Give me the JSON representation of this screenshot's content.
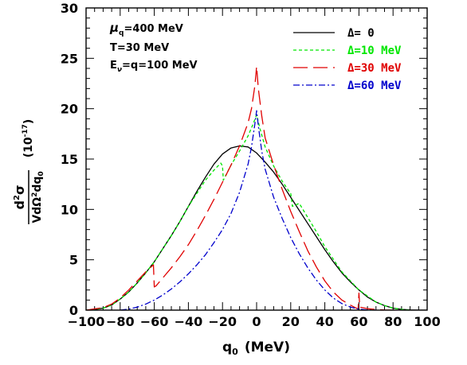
{
  "chart_data": {
    "type": "line",
    "xlabel": {
      "main": "q",
      "sub": "0",
      "unit": "(MeV)"
    },
    "ylabel": {
      "num_d": "d",
      "num_sup": "2",
      "num_sigma": "σ",
      "den": "VdΩ",
      "den_sup": "2",
      "den_dq": "dq",
      "den_sub": "0",
      "scale": "(10",
      "scale_exp": "-17",
      "scale_close": ")"
    },
    "xlim": [
      -100,
      100
    ],
    "ylim": [
      0,
      30
    ],
    "xticks": [
      -100,
      -80,
      -60,
      -40,
      -20,
      0,
      20,
      40,
      60,
      80,
      100
    ],
    "xtick_labels": [
      "−100",
      "−80",
      "−60",
      "−40",
      "−20",
      "0",
      "20",
      "40",
      "60",
      "80",
      "100"
    ],
    "yticks": [
      0,
      5,
      10,
      15,
      20,
      25,
      30
    ],
    "ytick_labels": [
      "0",
      "5",
      "10",
      "15",
      "20",
      "25",
      "30"
    ],
    "params": {
      "mu_sym": "μ",
      "mu_sub": "q",
      "mu_val": "=400 MeV",
      "temp": "T=30 MeV",
      "enu_sym": "E",
      "enu_sub": "ν",
      "enu_val": "=q=100 MeV"
    },
    "series": [
      {
        "name": "Δ= 0",
        "color": "#000000",
        "dash": "",
        "x": [
          -100,
          -95,
          -90,
          -85,
          -80,
          -75,
          -70,
          -65,
          -60,
          -55,
          -50,
          -45,
          -40,
          -35,
          -30,
          -25,
          -20,
          -15,
          -10,
          -5,
          0,
          5,
          10,
          15,
          20,
          25,
          30,
          35,
          40,
          45,
          50,
          55,
          60,
          65,
          70,
          75,
          80,
          85,
          90,
          95,
          100
        ],
        "y": [
          0,
          0.05,
          0.2,
          0.5,
          1.1,
          1.8,
          2.7,
          3.7,
          4.8,
          6.1,
          7.4,
          8.8,
          10.3,
          11.8,
          13.2,
          14.5,
          15.5,
          16.1,
          16.3,
          16.2,
          15.6,
          14.7,
          13.7,
          12.5,
          11.2,
          9.9,
          8.6,
          7.3,
          6.0,
          4.8,
          3.7,
          2.8,
          2.0,
          1.3,
          0.8,
          0.45,
          0.2,
          0.08,
          0.02,
          0,
          0
        ]
      },
      {
        "name": "Δ=10 MeV",
        "color": "#00e600",
        "dash": "4 3",
        "x": [
          -100,
          -90,
          -85,
          -80,
          -75,
          -70,
          -65,
          -60,
          -55,
          -50,
          -45,
          -40,
          -35,
          -30,
          -25,
          -21,
          -20,
          -19.5,
          -15,
          -10,
          -5,
          -2,
          0,
          2,
          5,
          10,
          15,
          19,
          20,
          21,
          25,
          30,
          35,
          40,
          50,
          60,
          70,
          75,
          80,
          85,
          90
        ],
        "y": [
          0,
          0.2,
          0.5,
          1.1,
          1.8,
          2.7,
          3.7,
          4.8,
          6.1,
          7.4,
          8.8,
          10.3,
          11.6,
          12.9,
          13.9,
          14.6,
          14.3,
          12.9,
          14.4,
          15.8,
          17.3,
          18.5,
          19.4,
          18.0,
          16.2,
          14.3,
          12.8,
          11.8,
          11.6,
          10.3,
          10.6,
          9.2,
          7.8,
          6.3,
          3.8,
          2.0,
          0.8,
          0.45,
          0.2,
          0.08,
          0
        ]
      },
      {
        "name": "Δ=30 MeV",
        "color": "#e00000",
        "dash": "18 7",
        "x": [
          -100,
          -90,
          -85,
          -80,
          -75,
          -70,
          -65,
          -60.5,
          -60,
          -59,
          -55,
          -50,
          -45,
          -40,
          -35,
          -30,
          -25,
          -20,
          -15,
          -10,
          -5,
          -3,
          -1,
          0,
          1,
          3,
          5,
          10,
          15,
          20,
          25,
          30,
          35,
          40,
          45,
          50,
          55,
          59.5,
          60,
          60.5,
          65,
          70,
          75,
          80,
          85
        ],
        "y": [
          0,
          0.25,
          0.6,
          1.2,
          2.0,
          2.9,
          3.8,
          4.5,
          2.3,
          2.4,
          3.2,
          4.2,
          5.3,
          6.5,
          7.9,
          9.4,
          11.0,
          12.7,
          14.4,
          16.3,
          18.6,
          20.0,
          22.3,
          24.2,
          22.0,
          19.3,
          17.1,
          14.4,
          12.0,
          9.8,
          7.8,
          5.9,
          4.3,
          2.9,
          1.8,
          1.0,
          0.5,
          0.1,
          1.7,
          0.3,
          0.15,
          0.06,
          0.02,
          0,
          0
        ]
      },
      {
        "name": "Δ=60 MeV",
        "color": "#0000cc",
        "dash": "8 3 2 3",
        "x": [
          -80,
          -75,
          -70,
          -65,
          -60,
          -55,
          -50,
          -45,
          -40,
          -35,
          -30,
          -25,
          -20,
          -15,
          -10,
          -5,
          -3,
          -1,
          0,
          1,
          3,
          5,
          10,
          15,
          20,
          25,
          30,
          35,
          40,
          45,
          50,
          55,
          60,
          65,
          70
        ],
        "y": [
          0,
          0.1,
          0.3,
          0.6,
          1.0,
          1.5,
          2.1,
          2.8,
          3.6,
          4.5,
          5.5,
          6.7,
          8.0,
          9.6,
          11.7,
          14.5,
          16.2,
          18.5,
          19.8,
          18.3,
          15.8,
          14.0,
          11.2,
          9.1,
          7.2,
          5.6,
          4.2,
          3.0,
          2.0,
          1.2,
          0.65,
          0.3,
          0.1,
          0.02,
          0
        ]
      }
    ]
  }
}
